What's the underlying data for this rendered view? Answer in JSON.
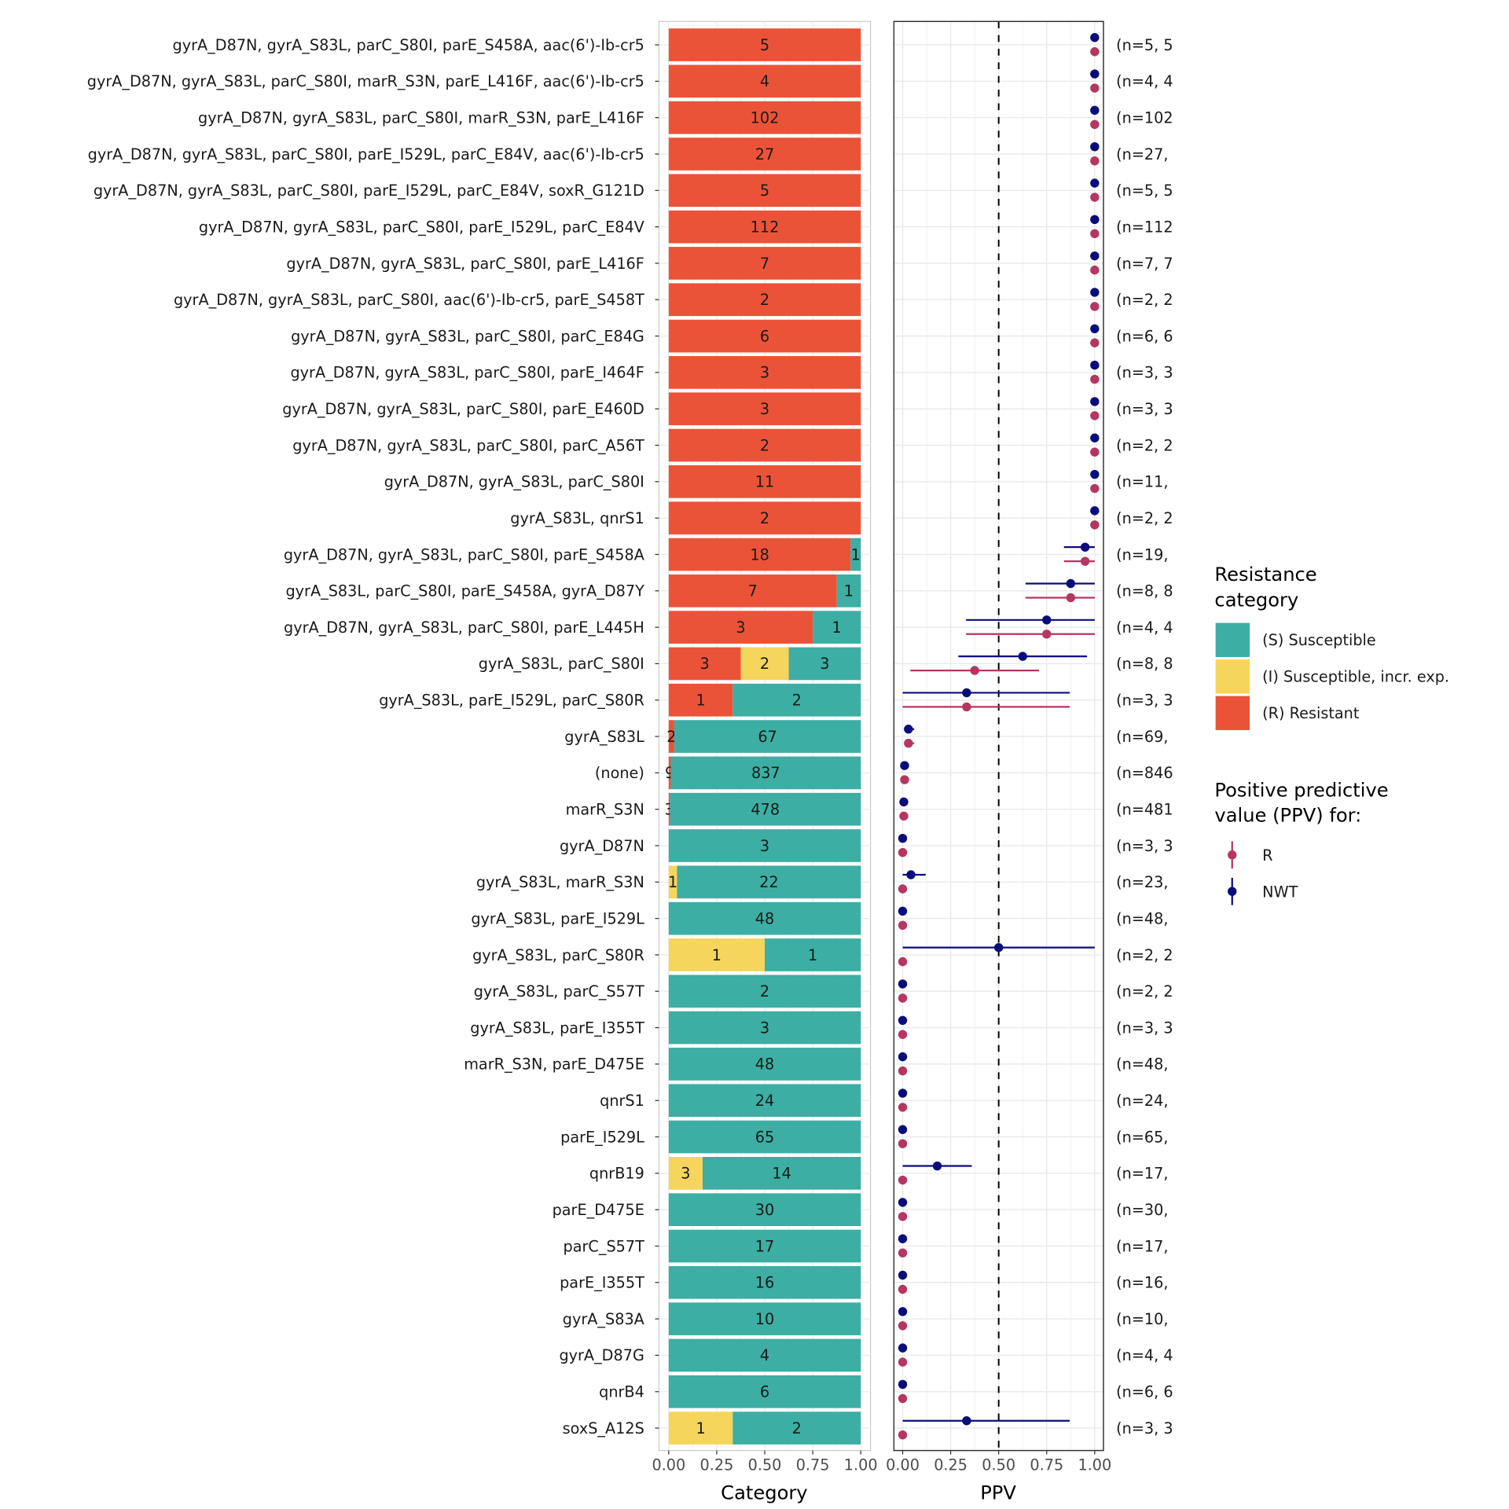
{
  "chart_data": [
    {
      "type": "bar",
      "orientation": "horizontal",
      "stacked": "proportion",
      "xlabel": "Category",
      "ylabel": "",
      "xlim": [
        0,
        1
      ],
      "xticks": [
        "0.00",
        "0.25",
        "0.50",
        "0.75",
        "1.00"
      ],
      "grid": true,
      "categories": [
        "gyrA_D87N, gyrA_S83L, parC_S80I, parE_S458A, aac(6')-Ib-cr5",
        "gyrA_D87N, gyrA_S83L, parC_S80I, marR_S3N, parE_L416F, aac(6')-Ib-cr5",
        "gyrA_D87N, gyrA_S83L, parC_S80I, marR_S3N, parE_L416F",
        "gyrA_D87N, gyrA_S83L, parC_S80I, parE_I529L, parC_E84V, aac(6')-Ib-cr5",
        "gyrA_D87N, gyrA_S83L, parC_S80I, parE_I529L, parC_E84V, soxR_G121D",
        "gyrA_D87N, gyrA_S83L, parC_S80I, parE_I529L, parC_E84V",
        "gyrA_D87N, gyrA_S83L, parC_S80I, parE_L416F",
        "gyrA_D87N, gyrA_S83L, parC_S80I, aac(6')-Ib-cr5, parE_S458T",
        "gyrA_D87N, gyrA_S83L, parC_S80I, parC_E84G",
        "gyrA_D87N, gyrA_S83L, parC_S80I, parE_I464F",
        "gyrA_D87N, gyrA_S83L, parC_S80I, parE_E460D",
        "gyrA_D87N, gyrA_S83L, parC_S80I, parC_A56T",
        "gyrA_D87N, gyrA_S83L, parC_S80I",
        "gyrA_S83L, qnrS1",
        "gyrA_D87N, gyrA_S83L, parC_S80I, parE_S458A",
        "gyrA_S83L, parC_S80I, parE_S458A, gyrA_D87Y",
        "gyrA_D87N, gyrA_S83L, parC_S80I, parE_L445H",
        "gyrA_S83L, parC_S80I",
        "gyrA_S83L, parE_I529L, parC_S80R",
        "gyrA_S83L",
        "(none)",
        "marR_S3N",
        "gyrA_D87N",
        "gyrA_S83L, marR_S3N",
        "gyrA_S83L, parE_I529L",
        "gyrA_S83L, parC_S80R",
        "gyrA_S83L, parC_S57T",
        "gyrA_S83L, parE_I355T",
        "marR_S3N, parE_D475E",
        "qnrS1",
        "parE_I529L",
        "qnrB19",
        "parE_D475E",
        "parC_S57T",
        "parE_I355T",
        "gyrA_S83A",
        "gyrA_D87G",
        "qnrB4",
        "soxS_A12S"
      ],
      "series": [
        {
          "name": "(R) Resistant",
          "color": "#EB5339",
          "values": [
            5,
            4,
            102,
            27,
            5,
            112,
            7,
            2,
            6,
            3,
            3,
            2,
            11,
            2,
            18,
            7,
            3,
            3,
            1,
            2,
            9,
            3,
            0,
            0,
            0,
            0,
            0,
            0,
            0,
            0,
            0,
            0,
            0,
            0,
            0,
            0,
            0,
            0,
            0
          ]
        },
        {
          "name": "(I) Susceptible, incr. exp.",
          "color": "#F5D55C",
          "values": [
            0,
            0,
            0,
            0,
            0,
            0,
            0,
            0,
            0,
            0,
            0,
            0,
            0,
            0,
            0,
            0,
            0,
            2,
            0,
            0,
            0,
            0,
            0,
            1,
            0,
            1,
            0,
            0,
            0,
            0,
            0,
            3,
            0,
            0,
            0,
            0,
            0,
            0,
            1
          ]
        },
        {
          "name": "(S) Susceptible",
          "color": "#3DAEA3",
          "values": [
            0,
            0,
            0,
            0,
            0,
            0,
            0,
            0,
            0,
            0,
            0,
            0,
            0,
            0,
            1,
            1,
            1,
            3,
            2,
            67,
            837,
            478,
            3,
            22,
            48,
            1,
            2,
            3,
            48,
            24,
            65,
            14,
            30,
            17,
            16,
            10,
            4,
            6,
            2
          ]
        }
      ]
    },
    {
      "type": "scatter",
      "subtype": "pointrange",
      "xlabel": "PPV",
      "xlim": [
        0,
        1
      ],
      "xticks": [
        "0.00",
        "0.25",
        "0.50",
        "0.75",
        "1.00"
      ],
      "reference_line": {
        "x": 0.5,
        "style": "dashed"
      },
      "grid": true,
      "series": [
        {
          "name": "NWT",
          "color": "#0B0C7C",
          "points": [
            {
              "ppv": 1.0,
              "lo": null,
              "hi": null
            },
            {
              "ppv": 1.0,
              "lo": null,
              "hi": null
            },
            {
              "ppv": 1.0,
              "lo": null,
              "hi": null
            },
            {
              "ppv": 1.0,
              "lo": null,
              "hi": null
            },
            {
              "ppv": 1.0,
              "lo": null,
              "hi": null
            },
            {
              "ppv": 1.0,
              "lo": null,
              "hi": null
            },
            {
              "ppv": 1.0,
              "lo": null,
              "hi": null
            },
            {
              "ppv": 1.0,
              "lo": null,
              "hi": null
            },
            {
              "ppv": 1.0,
              "lo": null,
              "hi": null
            },
            {
              "ppv": 1.0,
              "lo": null,
              "hi": null
            },
            {
              "ppv": 1.0,
              "lo": null,
              "hi": null
            },
            {
              "ppv": 1.0,
              "lo": null,
              "hi": null
            },
            {
              "ppv": 1.0,
              "lo": null,
              "hi": null
            },
            {
              "ppv": 1.0,
              "lo": null,
              "hi": null
            },
            {
              "ppv": 0.95,
              "lo": 0.84,
              "hi": 1.0
            },
            {
              "ppv": 0.875,
              "lo": 0.64,
              "hi": 1.0
            },
            {
              "ppv": 0.75,
              "lo": 0.33,
              "hi": 1.0
            },
            {
              "ppv": 0.625,
              "lo": 0.29,
              "hi": 0.96
            },
            {
              "ppv": 0.333,
              "lo": 0.0,
              "hi": 0.87
            },
            {
              "ppv": 0.03,
              "lo": 0.01,
              "hi": 0.06
            },
            {
              "ppv": 0.01,
              "lo": null,
              "hi": null
            },
            {
              "ppv": 0.006,
              "lo": null,
              "hi": null
            },
            {
              "ppv": 0.0,
              "lo": null,
              "hi": null
            },
            {
              "ppv": 0.043,
              "lo": 0.0,
              "hi": 0.12
            },
            {
              "ppv": 0.0,
              "lo": null,
              "hi": null
            },
            {
              "ppv": 0.5,
              "lo": 0.0,
              "hi": 1.0
            },
            {
              "ppv": 0.0,
              "lo": null,
              "hi": null
            },
            {
              "ppv": 0.0,
              "lo": null,
              "hi": null
            },
            {
              "ppv": 0.0,
              "lo": null,
              "hi": null
            },
            {
              "ppv": 0.0,
              "lo": null,
              "hi": null
            },
            {
              "ppv": 0.0,
              "lo": null,
              "hi": null
            },
            {
              "ppv": 0.18,
              "lo": 0.0,
              "hi": 0.36
            },
            {
              "ppv": 0.0,
              "lo": null,
              "hi": null
            },
            {
              "ppv": 0.0,
              "lo": null,
              "hi": null
            },
            {
              "ppv": 0.0,
              "lo": null,
              "hi": null
            },
            {
              "ppv": 0.0,
              "lo": null,
              "hi": null
            },
            {
              "ppv": 0.0,
              "lo": null,
              "hi": null
            },
            {
              "ppv": 0.0,
              "lo": null,
              "hi": null
            },
            {
              "ppv": 0.333,
              "lo": 0.0,
              "hi": 0.87
            }
          ]
        },
        {
          "name": "R",
          "color": "#B5365F",
          "points": [
            {
              "ppv": 1.0,
              "lo": null,
              "hi": null
            },
            {
              "ppv": 1.0,
              "lo": null,
              "hi": null
            },
            {
              "ppv": 1.0,
              "lo": null,
              "hi": null
            },
            {
              "ppv": 1.0,
              "lo": null,
              "hi": null
            },
            {
              "ppv": 1.0,
              "lo": null,
              "hi": null
            },
            {
              "ppv": 1.0,
              "lo": null,
              "hi": null
            },
            {
              "ppv": 1.0,
              "lo": null,
              "hi": null
            },
            {
              "ppv": 1.0,
              "lo": null,
              "hi": null
            },
            {
              "ppv": 1.0,
              "lo": null,
              "hi": null
            },
            {
              "ppv": 1.0,
              "lo": null,
              "hi": null
            },
            {
              "ppv": 1.0,
              "lo": null,
              "hi": null
            },
            {
              "ppv": 1.0,
              "lo": null,
              "hi": null
            },
            {
              "ppv": 1.0,
              "lo": null,
              "hi": null
            },
            {
              "ppv": 1.0,
              "lo": null,
              "hi": null
            },
            {
              "ppv": 0.95,
              "lo": 0.84,
              "hi": 1.0
            },
            {
              "ppv": 0.875,
              "lo": 0.64,
              "hi": 1.0
            },
            {
              "ppv": 0.75,
              "lo": 0.33,
              "hi": 1.0
            },
            {
              "ppv": 0.375,
              "lo": 0.04,
              "hi": 0.71
            },
            {
              "ppv": 0.333,
              "lo": 0.0,
              "hi": 0.87
            },
            {
              "ppv": 0.03,
              "lo": 0.01,
              "hi": 0.06
            },
            {
              "ppv": 0.01,
              "lo": null,
              "hi": null
            },
            {
              "ppv": 0.006,
              "lo": null,
              "hi": null
            },
            {
              "ppv": 0.0,
              "lo": null,
              "hi": null
            },
            {
              "ppv": 0.0,
              "lo": null,
              "hi": null
            },
            {
              "ppv": 0.0,
              "lo": null,
              "hi": null
            },
            {
              "ppv": 0.0,
              "lo": null,
              "hi": null
            },
            {
              "ppv": 0.0,
              "lo": null,
              "hi": null
            },
            {
              "ppv": 0.0,
              "lo": null,
              "hi": null
            },
            {
              "ppv": 0.0,
              "lo": null,
              "hi": null
            },
            {
              "ppv": 0.0,
              "lo": null,
              "hi": null
            },
            {
              "ppv": 0.0,
              "lo": null,
              "hi": null
            },
            {
              "ppv": 0.0,
              "lo": null,
              "hi": null
            },
            {
              "ppv": 0.0,
              "lo": null,
              "hi": null
            },
            {
              "ppv": 0.0,
              "lo": null,
              "hi": null
            },
            {
              "ppv": 0.0,
              "lo": null,
              "hi": null
            },
            {
              "ppv": 0.0,
              "lo": null,
              "hi": null
            },
            {
              "ppv": 0.0,
              "lo": null,
              "hi": null
            },
            {
              "ppv": 0.0,
              "lo": null,
              "hi": null
            },
            {
              "ppv": 0.0,
              "lo": null,
              "hi": null
            }
          ]
        }
      ],
      "n_labels": [
        "(n=5, 5",
        "(n=4, 4",
        "(n=102",
        "(n=27,",
        "(n=5, 5",
        "(n=112",
        "(n=7, 7",
        "(n=2, 2",
        "(n=6, 6",
        "(n=3, 3",
        "(n=3, 3",
        "(n=2, 2",
        "(n=11,",
        "(n=2, 2",
        "(n=19,",
        "(n=8, 8",
        "(n=4, 4",
        "(n=8, 8",
        "(n=3, 3",
        "(n=69,",
        "(n=846",
        "(n=481",
        "(n=3, 3",
        "(n=23,",
        "(n=48,",
        "(n=2, 2",
        "(n=2, 2",
        "(n=3, 3",
        "(n=48,",
        "(n=24,",
        "(n=65,",
        "(n=17,",
        "(n=30,",
        "(n=17,",
        "(n=16,",
        "(n=10,",
        "(n=4, 4",
        "(n=6, 6",
        "(n=3, 3"
      ]
    }
  ],
  "legend": {
    "category_title_line1": "Resistance",
    "category_title_line2": "category",
    "category_items": [
      {
        "label": "(S) Susceptible",
        "color": "#3DAEA3"
      },
      {
        "label": "(I) Susceptible, incr. exp.",
        "color": "#F5D55C"
      },
      {
        "label": "(R) Resistant",
        "color": "#EB5339"
      }
    ],
    "ppv_title_line1": "Positive predictive",
    "ppv_title_line2": "value (PPV) for:",
    "ppv_items": [
      {
        "label": "R",
        "color": "#B5365F"
      },
      {
        "label": "NWT",
        "color": "#0B0C7C"
      }
    ],
    "placement": "right"
  }
}
